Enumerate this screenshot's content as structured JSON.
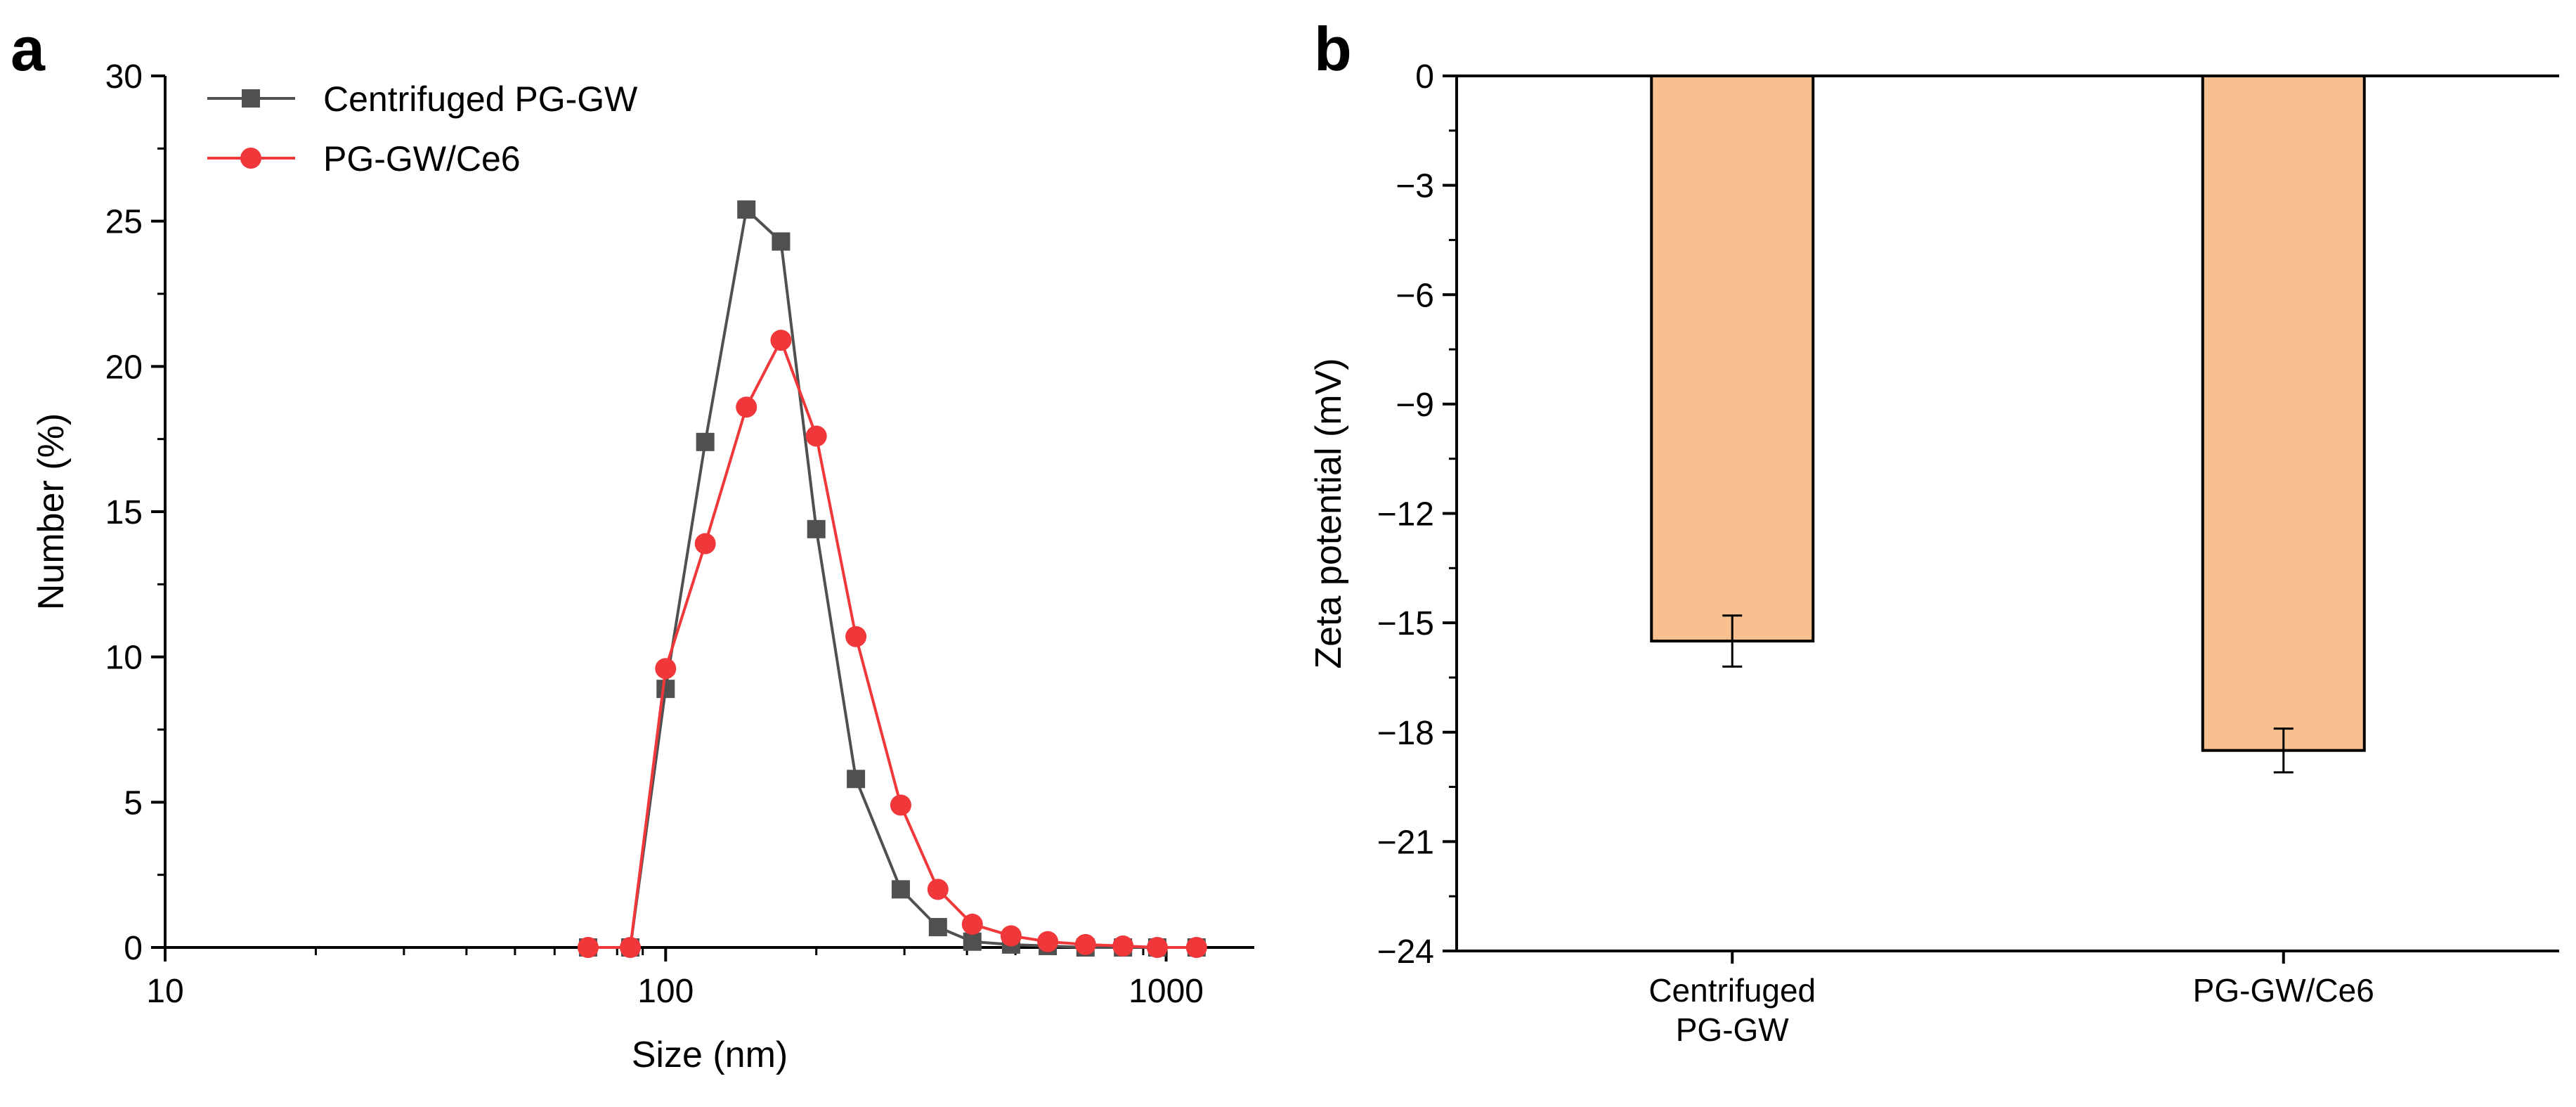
{
  "chart_data": [
    {
      "panel": "a",
      "type": "line",
      "title": "",
      "xlabel": "Size (nm)",
      "ylabel": "Number (%)",
      "xscale": "log",
      "xlim": [
        10,
        1500
      ],
      "ylim": [
        0,
        30
      ],
      "xticks": [
        10,
        100,
        1000
      ],
      "xtick_labels": [
        "10",
        "100",
        "1000"
      ],
      "yticks": [
        0,
        5,
        10,
        15,
        20,
        25,
        30
      ],
      "ytick_labels": [
        "0",
        "5",
        "10",
        "15",
        "20",
        "25",
        "30"
      ],
      "legend": "top-left",
      "series": [
        {
          "name": "Centrifuged PG-GW",
          "color": "#505050",
          "marker": "square",
          "x": [
            70,
            85,
            100,
            120,
            145,
            170,
            200,
            240,
            295,
            350,
            410,
            490,
            580,
            690,
            820,
            960,
            1150
          ],
          "values": [
            0,
            0,
            8.9,
            17.4,
            25.4,
            24.3,
            14.4,
            5.8,
            2.0,
            0.7,
            0.2,
            0.1,
            0.05,
            0,
            0,
            0,
            0
          ]
        },
        {
          "name": "PG-GW/Ce6",
          "color": "#f0373a",
          "marker": "circle",
          "x": [
            70,
            85,
            100,
            120,
            145,
            170,
            200,
            240,
            295,
            350,
            410,
            490,
            580,
            690,
            820,
            960,
            1150
          ],
          "values": [
            0,
            0,
            9.6,
            13.9,
            18.6,
            20.9,
            17.6,
            10.7,
            4.9,
            2.0,
            0.8,
            0.4,
            0.2,
            0.1,
            0.05,
            0,
            0
          ]
        }
      ]
    },
    {
      "panel": "b",
      "type": "bar",
      "title": "",
      "xlabel": "",
      "ylabel": "Zeta potential (mV)",
      "ylim": [
        -24,
        0
      ],
      "yticks": [
        0,
        -3,
        -6,
        -9,
        -12,
        -15,
        -18,
        -21,
        -24
      ],
      "ytick_labels": [
        "0",
        "−3",
        "−6",
        "−9",
        "−12",
        "−15",
        "−18",
        "−21",
        "−24"
      ],
      "bar_color": "#f9c08f",
      "categories": [
        {
          "lines": [
            "Centrifuged",
            "PG-GW"
          ]
        },
        {
          "lines": [
            "PG-GW/Ce6"
          ]
        }
      ],
      "values": [
        -15.5,
        -18.5
      ],
      "errors": [
        0.7,
        0.6
      ]
    }
  ]
}
